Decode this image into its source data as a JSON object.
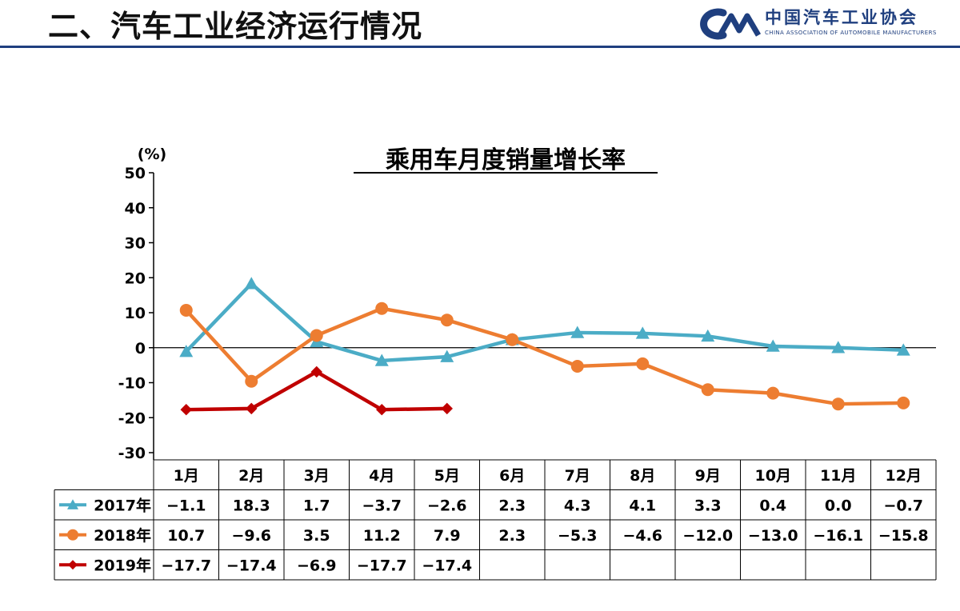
{
  "slide": {
    "title": "二、汽车工业经济运行情况",
    "logo_name": "中国汽车工业协会",
    "logo_subtitle": "CHINA ASSOCIATION OF AUTOMOBILE MANUFACTURERS"
  },
  "colors": {
    "brand": "#1f3f7f",
    "series_2017": "#4bacc6",
    "series_2018": "#ed7d31",
    "series_2019": "#c00000"
  },
  "chart_data": {
    "type": "line",
    "title": "乘用车月度销量增长率",
    "ylabel": "(%)",
    "ylim": [
      -30,
      50
    ],
    "yticks": [
      "50",
      "40",
      "30",
      "20",
      "10",
      "0",
      "-10",
      "-20",
      "-30"
    ],
    "grid": false,
    "legend": "data-table",
    "categories": [
      "1月",
      "2月",
      "3月",
      "4月",
      "5月",
      "6月",
      "7月",
      "8月",
      "9月",
      "10月",
      "11月",
      "12月"
    ],
    "series": [
      {
        "name": "2017年",
        "marker": "triangle",
        "color": "#4bacc6",
        "values": [
          -1.1,
          18.3,
          1.7,
          -3.7,
          -2.6,
          2.3,
          4.3,
          4.1,
          3.3,
          0.4,
          0.0,
          -0.7
        ],
        "labels": [
          "−1.1",
          "18.3",
          "1.7",
          "−3.7",
          "−2.6",
          "2.3",
          "4.3",
          "4.1",
          "3.3",
          "0.4",
          "0.0",
          "−0.7"
        ]
      },
      {
        "name": "2018年",
        "marker": "circle",
        "color": "#ed7d31",
        "values": [
          10.7,
          -9.6,
          3.5,
          11.2,
          7.9,
          2.3,
          -5.3,
          -4.6,
          -12.0,
          -13.0,
          -16.1,
          -15.8
        ],
        "labels": [
          "10.7",
          "−9.6",
          "3.5",
          "11.2",
          "7.9",
          "2.3",
          "−5.3",
          "−4.6",
          "−12.0",
          "−13.0",
          "−16.1",
          "−15.8"
        ]
      },
      {
        "name": "2019年",
        "marker": "diamond",
        "color": "#c00000",
        "values": [
          -17.7,
          -17.4,
          -6.9,
          -17.7,
          -17.4,
          null,
          null,
          null,
          null,
          null,
          null,
          null
        ],
        "labels": [
          "−17.7",
          "−17.4",
          "−6.9",
          "−17.7",
          "−17.4",
          "",
          "",
          "",
          "",
          "",
          "",
          ""
        ]
      }
    ]
  }
}
